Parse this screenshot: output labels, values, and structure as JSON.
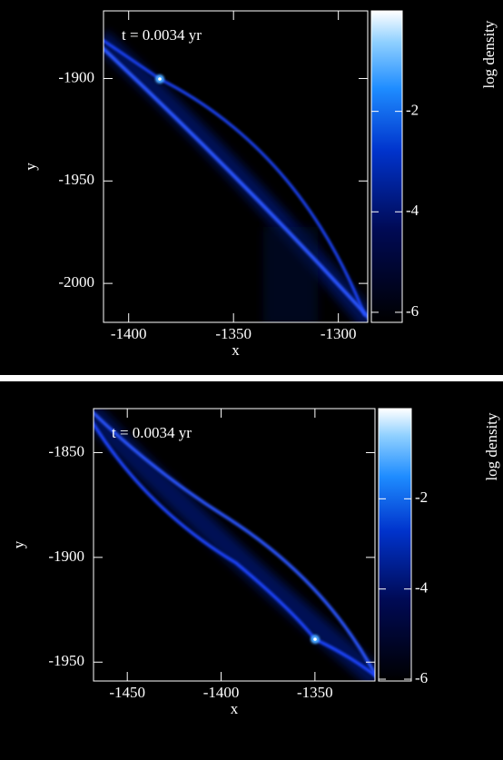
{
  "chart_data": [
    {
      "type": "heatmap",
      "annotation": "t = 0.0034 yr",
      "xlabel": "x",
      "ylabel": "y",
      "xlim": [
        -1412,
        -1286
      ],
      "ylim": [
        -2019,
        -1867
      ],
      "xticks": [
        -1400,
        -1350,
        -1300
      ],
      "yticks": [
        -2000,
        -1950,
        -1900
      ],
      "colorbar": {
        "label": "log density",
        "lim": [
          -6.2,
          0
        ],
        "ticks": [
          -6,
          -4,
          -2
        ]
      }
    },
    {
      "type": "heatmap",
      "annotation": "t = 0.0034 yr",
      "xlabel": "x",
      "ylabel": "y",
      "xlim": [
        -1468,
        -1318
      ],
      "ylim": [
        -1959,
        -1829
      ],
      "xticks": [
        -1450,
        -1400,
        -1350
      ],
      "yticks": [
        -1950,
        -1900,
        -1850
      ],
      "colorbar": {
        "label": "log density",
        "lim": [
          -6.04,
          0
        ],
        "ticks": [
          -6,
          -4,
          -2
        ]
      }
    }
  ]
}
